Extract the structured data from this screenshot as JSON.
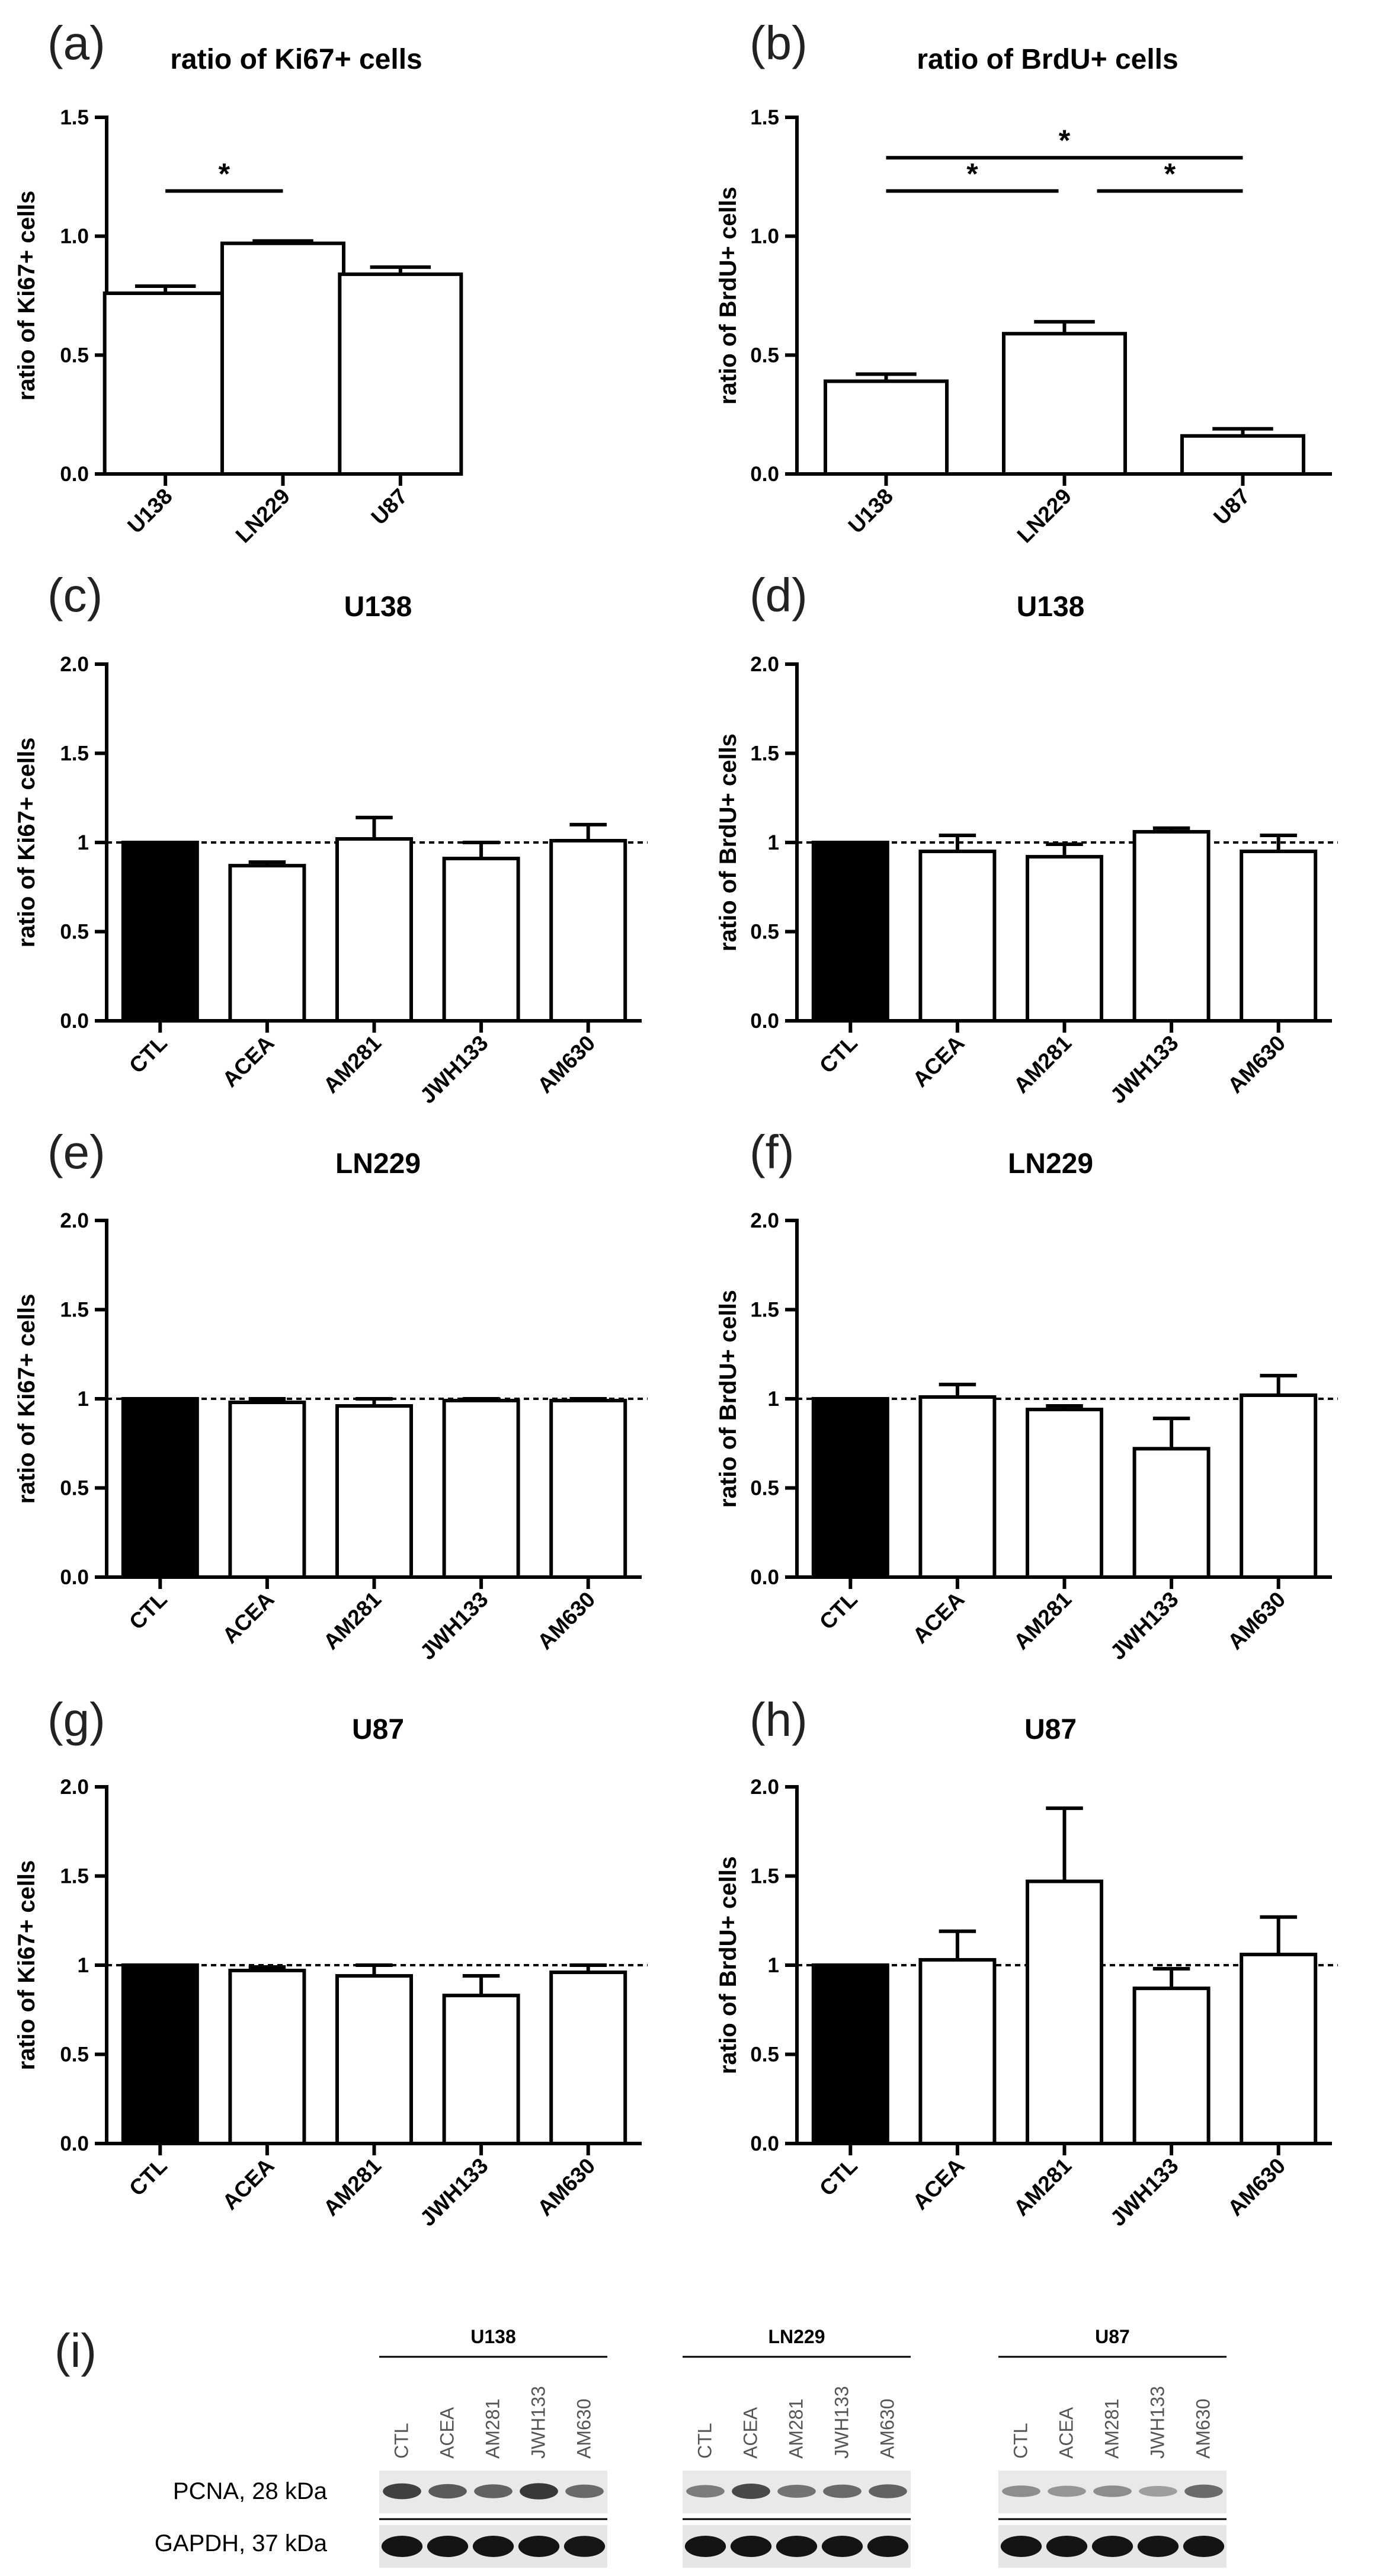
{
  "chart_data": [
    {
      "panel": "(a)",
      "type": "bar",
      "title": "ratio of Ki67+ cells",
      "ylabel": "ratio of Ki67+ cells",
      "ylim": [
        0,
        1.5
      ],
      "yticks": [
        "0.0",
        "0.5",
        "1.0",
        "1.5"
      ],
      "categories": [
        "U138",
        "LN229",
        "U87"
      ],
      "values": [
        0.76,
        0.97,
        0.84
      ],
      "errors": [
        0.03,
        0.01,
        0.03
      ],
      "fills": [
        "#ffffff",
        "#ffffff",
        "#ffffff"
      ],
      "significance": [
        {
          "from": 0,
          "to": 1,
          "level": 1.19,
          "label": "*"
        }
      ],
      "reference_line": null
    },
    {
      "panel": "(b)",
      "type": "bar",
      "title": "ratio of BrdU+ cells",
      "ylabel": "ratio of BrdU+ cells",
      "ylim": [
        0,
        1.5
      ],
      "yticks": [
        "0.0",
        "0.5",
        "1.0",
        "1.5"
      ],
      "categories": [
        "U138",
        "LN229",
        "U87"
      ],
      "values": [
        0.39,
        0.59,
        0.16
      ],
      "errors": [
        0.03,
        0.05,
        0.03
      ],
      "fills": [
        "#ffffff",
        "#ffffff",
        "#ffffff"
      ],
      "significance": [
        {
          "from": 0,
          "to": 2,
          "level": 1.33,
          "label": "*"
        },
        {
          "from": 0,
          "to": 1,
          "level": 1.19,
          "label": "*"
        },
        {
          "from": 1,
          "to": 2,
          "level": 1.19,
          "label": "*"
        }
      ],
      "reference_line": null
    },
    {
      "panel": "(c)",
      "type": "bar",
      "title": "U138",
      "ylabel": "ratio of Ki67+ cells",
      "ylim": [
        0,
        2.0
      ],
      "yticks": [
        "0.0",
        "0.5",
        "1",
        "1.5",
        "2.0"
      ],
      "categories": [
        "CTL",
        "ACEA",
        "AM281",
        "JWH133",
        "AM630"
      ],
      "values": [
        1.0,
        0.87,
        1.02,
        0.91,
        1.01
      ],
      "errors": [
        0,
        0.02,
        0.12,
        0.09,
        0.09
      ],
      "fills": [
        "#000000",
        "#ffffff",
        "#ffffff",
        "#ffffff",
        "#ffffff"
      ],
      "significance": [],
      "reference_line": 1.0
    },
    {
      "panel": "(d)",
      "type": "bar",
      "title": "U138",
      "ylabel": "ratio of BrdU+ cells",
      "ylim": [
        0,
        2.0
      ],
      "yticks": [
        "0.0",
        "0.5",
        "1",
        "1.5",
        "2.0"
      ],
      "categories": [
        "CTL",
        "ACEA",
        "AM281",
        "JWH133",
        "AM630"
      ],
      "values": [
        1.0,
        0.95,
        0.92,
        1.06,
        0.95
      ],
      "errors": [
        0,
        0.09,
        0.07,
        0.02,
        0.09
      ],
      "fills": [
        "#000000",
        "#ffffff",
        "#ffffff",
        "#ffffff",
        "#ffffff"
      ],
      "significance": [],
      "reference_line": 1.0
    },
    {
      "panel": "(e)",
      "type": "bar",
      "title": "LN229",
      "ylabel": "ratio of Ki67+ cells",
      "ylim": [
        0,
        2.0
      ],
      "yticks": [
        "0.0",
        "0.5",
        "1",
        "1.5",
        "2.0"
      ],
      "categories": [
        "CTL",
        "ACEA",
        "AM281",
        "JWH133",
        "AM630"
      ],
      "values": [
        1.0,
        0.98,
        0.96,
        0.99,
        0.99
      ],
      "errors": [
        0,
        0.02,
        0.04,
        0.01,
        0.01
      ],
      "fills": [
        "#000000",
        "#ffffff",
        "#ffffff",
        "#ffffff",
        "#ffffff"
      ],
      "significance": [],
      "reference_line": 1.0
    },
    {
      "panel": "(f)",
      "type": "bar",
      "title": "LN229",
      "ylabel": "ratio of BrdU+ cells",
      "ylim": [
        0,
        2.0
      ],
      "yticks": [
        "0.0",
        "0.5",
        "1",
        "1.5",
        "2.0"
      ],
      "categories": [
        "CTL",
        "ACEA",
        "AM281",
        "JWH133",
        "AM630"
      ],
      "values": [
        1.0,
        1.01,
        0.94,
        0.72,
        1.02
      ],
      "errors": [
        0,
        0.07,
        0.02,
        0.17,
        0.11
      ],
      "fills": [
        "#000000",
        "#ffffff",
        "#ffffff",
        "#ffffff",
        "#ffffff"
      ],
      "significance": [],
      "reference_line": 1.0
    },
    {
      "panel": "(g)",
      "type": "bar",
      "title": "U87",
      "ylabel": "ratio of Ki67+ cells",
      "ylim": [
        0,
        2.0
      ],
      "yticks": [
        "0.0",
        "0.5",
        "1",
        "1.5",
        "2.0"
      ],
      "categories": [
        "CTL",
        "ACEA",
        "AM281",
        "JWH133",
        "AM630"
      ],
      "values": [
        1.0,
        0.97,
        0.94,
        0.83,
        0.96
      ],
      "errors": [
        0,
        0.02,
        0.06,
        0.11,
        0.04
      ],
      "fills": [
        "#000000",
        "#ffffff",
        "#ffffff",
        "#ffffff",
        "#ffffff"
      ],
      "significance": [],
      "reference_line": 1.0
    },
    {
      "panel": "(h)",
      "type": "bar",
      "title": "U87",
      "ylabel": "ratio of BrdU+ cells",
      "ylim": [
        0,
        2.0
      ],
      "yticks": [
        "0.0",
        "0.5",
        "1",
        "1.5",
        "2.0"
      ],
      "categories": [
        "CTL",
        "ACEA",
        "AM281",
        "JWH133",
        "AM630"
      ],
      "values": [
        1.0,
        1.03,
        1.47,
        0.87,
        1.06
      ],
      "errors": [
        0,
        0.16,
        0.41,
        0.11,
        0.21
      ],
      "fills": [
        "#000000",
        "#ffffff",
        "#ffffff",
        "#ffffff",
        "#ffffff"
      ],
      "significance": [],
      "reference_line": 1.0
    }
  ],
  "western_blot": {
    "panel": "(i)",
    "groups": [
      {
        "name": "U138",
        "lanes": [
          "CTL",
          "ACEA",
          "AM281",
          "JWH133",
          "AM630"
        ],
        "pcna": [
          0.8,
          0.65,
          0.6,
          0.85,
          0.55
        ],
        "gapdh": [
          1,
          1,
          1,
          1,
          0.95
        ]
      },
      {
        "name": "LN229",
        "lanes": [
          "CTL",
          "ACEA",
          "AM281",
          "JWH133",
          "AM630"
        ],
        "pcna": [
          0.45,
          0.75,
          0.5,
          0.55,
          0.6
        ],
        "gapdh": [
          1,
          1,
          1,
          1,
          1
        ]
      },
      {
        "name": "U87",
        "lanes": [
          "CTL",
          "ACEA",
          "AM281",
          "JWH133",
          "AM630"
        ],
        "pcna": [
          0.35,
          0.3,
          0.35,
          0.25,
          0.55
        ],
        "gapdh": [
          1,
          1,
          1,
          1,
          1
        ]
      }
    ],
    "rows": [
      "PCNA, 28 kDa",
      "GAPDH, 37 kDa"
    ]
  }
}
